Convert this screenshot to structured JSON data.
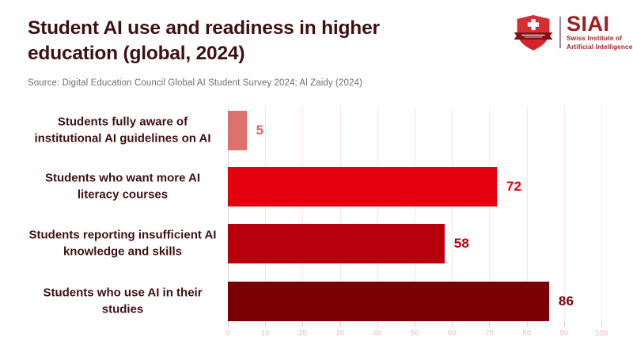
{
  "header": {
    "title": "Student AI use and readiness in higher education (global, 2024)",
    "source": "Source: Digital Education Council Global AI Student Survey 2024; Al Zaidy (2024)"
  },
  "logo": {
    "acronym": "SIAI",
    "name_line1": "Swiss Institute of",
    "name_line2": "Artificial Intelligence",
    "shield_color": "#d4232b",
    "ribbon_color": "#7d1417",
    "text_color": "#9e1d22"
  },
  "chart_data": {
    "type": "bar",
    "orientation": "horizontal",
    "title": "Student AI use and readiness in higher education (global, 2024)",
    "categories": [
      "Students fully aware of institutional AI guidelines on AI",
      "Students who want more AI literacy courses",
      "Students reporting insufficient AI knowledge and skills",
      "Students who use AI in their studies"
    ],
    "values": [
      5,
      72,
      58,
      86
    ],
    "bar_colors": [
      "#de736d",
      "#e4000f",
      "#b8000c",
      "#7a0004"
    ],
    "value_label_colors": [
      "#d96860",
      "#e4000f",
      "#b8000c",
      "#7a0004"
    ],
    "xlabel": "",
    "ylabel": "",
    "xlim": [
      0,
      100
    ],
    "x_ticks": [
      0,
      10,
      20,
      30,
      40,
      50,
      60,
      70,
      80,
      90,
      100
    ],
    "grid": "vertical",
    "legend": "none"
  }
}
